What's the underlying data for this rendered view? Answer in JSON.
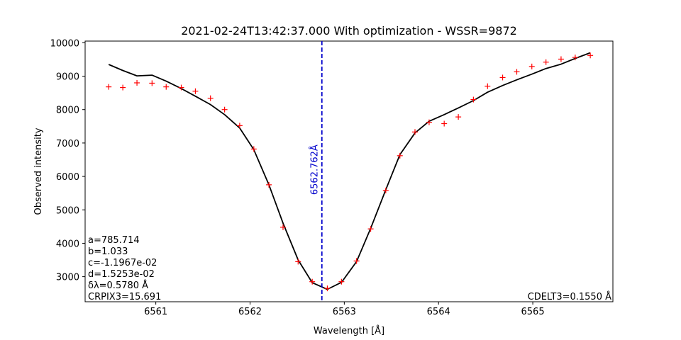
{
  "chart_data": {
    "type": "line",
    "title": "2021-02-24T13:42:37.000 With optimization - WSSR=9872",
    "xlabel": "Wavelength [Å]",
    "ylabel": "Observed intensity",
    "xlim": [
      6560.25,
      6565.85
    ],
    "ylim": [
      2250,
      10050
    ],
    "x_ticks": [
      6561,
      6562,
      6563,
      6564,
      6565
    ],
    "y_ticks": [
      3000,
      4000,
      5000,
      6000,
      7000,
      8000,
      9000,
      10000
    ],
    "grid": false,
    "series": [
      {
        "kind": "markers",
        "marker": "+",
        "color": "#ff0000",
        "x": [
          6560.5,
          6560.65,
          6560.8,
          6560.96,
          6561.11,
          6561.27,
          6561.42,
          6561.58,
          6561.73,
          6561.89,
          6562.04,
          6562.2,
          6562.35,
          6562.51,
          6562.66,
          6562.82,
          6562.97,
          6563.13,
          6563.28,
          6563.44,
          6563.59,
          6563.75,
          6563.9,
          6564.06,
          6564.21,
          6564.37,
          6564.52,
          6564.68,
          6564.83,
          6564.99,
          6565.14,
          6565.3,
          6565.45,
          6565.61
        ],
        "y": [
          8680,
          8660,
          8800,
          8790,
          8680,
          8660,
          8550,
          8340,
          8000,
          7520,
          6820,
          5750,
          4480,
          3450,
          2850,
          2650,
          2850,
          3470,
          4430,
          5580,
          6620,
          7330,
          7620,
          7580,
          7780,
          8300,
          8700,
          8960,
          9130,
          9290,
          9420,
          9510,
          9560,
          9620
        ]
      },
      {
        "kind": "line",
        "color": "#000000",
        "x": [
          6560.5,
          6560.65,
          6560.8,
          6560.96,
          6561.11,
          6561.27,
          6561.42,
          6561.58,
          6561.73,
          6561.89,
          6562.04,
          6562.2,
          6562.35,
          6562.51,
          6562.66,
          6562.82,
          6562.97,
          6563.13,
          6563.28,
          6563.44,
          6563.59,
          6563.75,
          6563.9,
          6564.06,
          6564.21,
          6564.37,
          6564.52,
          6564.68,
          6564.83,
          6564.99,
          6565.14,
          6565.3,
          6565.45,
          6565.61
        ],
        "y": [
          9350,
          9170,
          9010,
          9030,
          8850,
          8630,
          8400,
          8150,
          7850,
          7450,
          6800,
          5750,
          4600,
          3500,
          2820,
          2620,
          2830,
          3450,
          4450,
          5600,
          6650,
          7300,
          7650,
          7850,
          8050,
          8270,
          8520,
          8720,
          8890,
          9060,
          9230,
          9360,
          9530,
          9700
        ]
      }
    ],
    "vline": {
      "x": 6562.762,
      "color": "#0000cc",
      "style": "dashed",
      "label": "6562.762Å"
    },
    "annotations_left": [
      "a=785.714",
      "b=1.033",
      "c=-1.1967e-02",
      "d=1.5253e-02",
      "δλ=0.5780 Å",
      "CRPIX3=15.691"
    ],
    "annotation_right": "CDELT3=0.1550 Å"
  }
}
